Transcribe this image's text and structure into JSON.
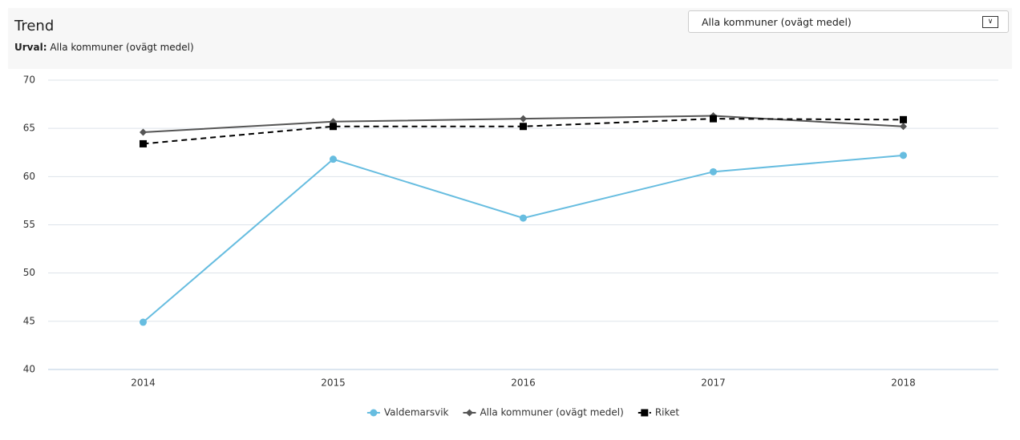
{
  "header": {
    "title": "Trend",
    "subtitle_label": "Urval:",
    "subtitle_value": "Alla kommuner (ovägt medel)"
  },
  "dropdown": {
    "selected": "Alla kommuner (ovägt medel)"
  },
  "chart_data": {
    "type": "line",
    "categories": [
      "2014",
      "2015",
      "2016",
      "2017",
      "2018"
    ],
    "series": [
      {
        "name": "Valdemarsvik",
        "color": "#67bde0",
        "marker": "circle",
        "dash": false,
        "values": [
          44.9,
          61.8,
          55.7,
          60.5,
          62.2
        ]
      },
      {
        "name": "Alla kommuner (ovägt medel)",
        "color": "#555555",
        "marker": "diamond",
        "dash": false,
        "values": [
          64.6,
          65.7,
          66.0,
          66.3,
          65.2
        ]
      },
      {
        "name": "Riket",
        "color": "#000000",
        "marker": "square",
        "dash": true,
        "values": [
          63.4,
          65.2,
          65.2,
          66.0,
          65.9
        ]
      }
    ],
    "ylim": [
      40,
      70
    ],
    "yticks": [
      40,
      45,
      50,
      55,
      60,
      65,
      70
    ],
    "grid": true,
    "legend": "bottom"
  }
}
